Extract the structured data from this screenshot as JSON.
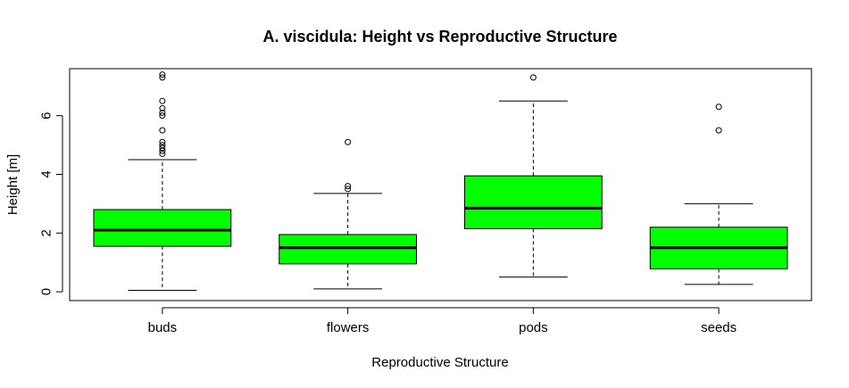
{
  "chart_data": {
    "type": "box",
    "title": "A. viscidula: Height vs Reproductive Structure",
    "xlabel": "Reproductive Structure",
    "ylabel": "Height [m]",
    "ylim": [
      -0.3,
      7.6
    ],
    "yticks": [
      0,
      2,
      4,
      6
    ],
    "grid": false,
    "colors": {
      "box_fill": "#00ff00",
      "stroke": "#000000",
      "background": "#ffffff"
    },
    "categories": [
      "buds",
      "flowers",
      "pods",
      "seeds"
    ],
    "boxes": [
      {
        "category": "buds",
        "min": 0.05,
        "q1": 1.55,
        "median": 2.1,
        "q3": 2.8,
        "max": 4.5,
        "outliers": [
          4.7,
          4.8,
          4.9,
          5.0,
          5.1,
          5.5,
          6.0,
          6.1,
          6.25,
          6.5,
          7.3,
          7.4
        ]
      },
      {
        "category": "flowers",
        "min": 0.1,
        "q1": 0.95,
        "median": 1.5,
        "q3": 1.95,
        "max": 3.35,
        "outliers": [
          3.5,
          3.6,
          5.1
        ]
      },
      {
        "category": "pods",
        "min": 0.5,
        "q1": 2.15,
        "median": 2.85,
        "q3": 3.95,
        "max": 6.5,
        "outliers": [
          7.3
        ]
      },
      {
        "category": "seeds",
        "min": 0.25,
        "q1": 0.78,
        "median": 1.5,
        "q3": 2.2,
        "max": 3.0,
        "outliers": [
          5.5,
          6.3
        ]
      }
    ]
  }
}
